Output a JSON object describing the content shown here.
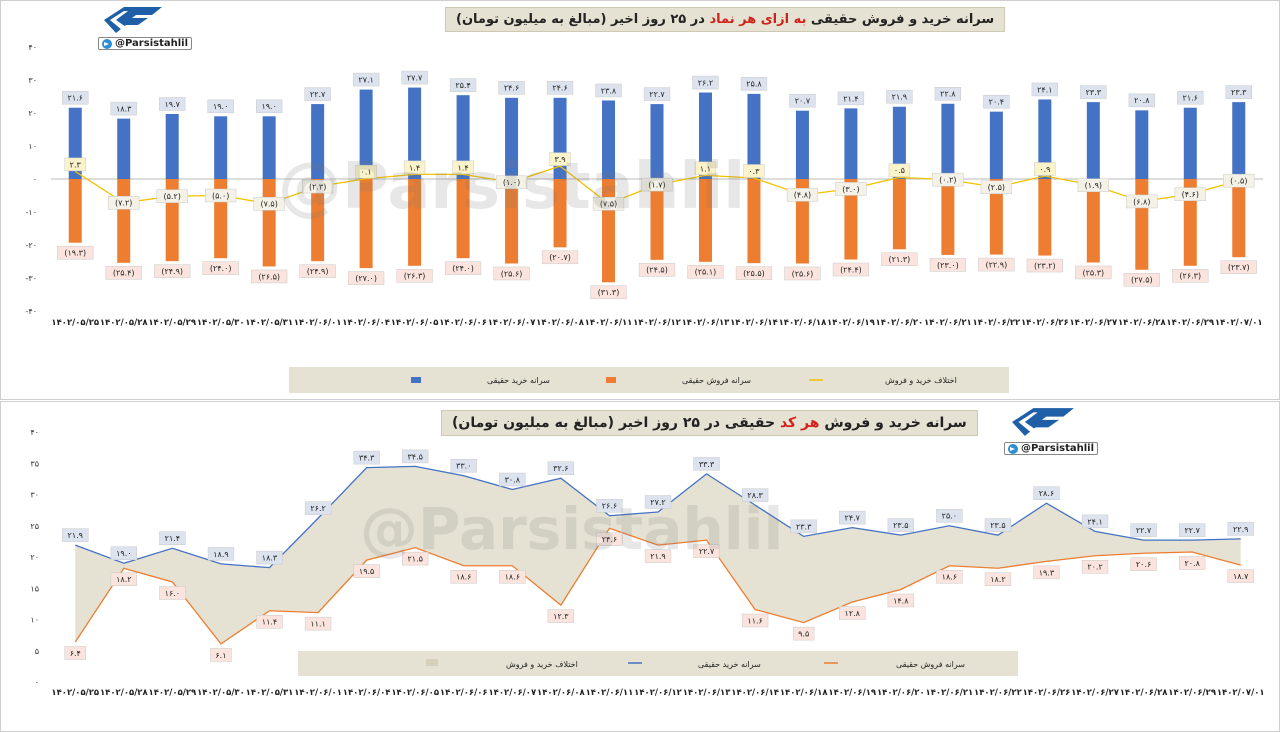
{
  "brand": {
    "handle": "@Parsistahlil",
    "watermark": "@Parsistahlil"
  },
  "dates": [
    "۱۴۰۲/۰۵/۲۵",
    "۱۴۰۲/۰۵/۲۸",
    "۱۴۰۲/۰۵/۲۹",
    "۱۴۰۲/۰۵/۳۰",
    "۱۴۰۲/۰۵/۳۱",
    "۱۴۰۲/۰۶/۰۱",
    "۱۴۰۲/۰۶/۰۴",
    "۱۴۰۲/۰۶/۰۵",
    "۱۴۰۲/۰۶/۰۶",
    "۱۴۰۲/۰۶/۰۷",
    "۱۴۰۲/۰۶/۰۸",
    "۱۴۰۲/۰۶/۱۱",
    "۱۴۰۲/۰۶/۱۲",
    "۱۴۰۲/۰۶/۱۳",
    "۱۴۰۲/۰۶/۱۴",
    "۱۴۰۲/۰۶/۱۸",
    "۱۴۰۲/۰۶/۱۹",
    "۱۴۰۲/۰۶/۲۰",
    "۱۴۰۲/۰۶/۲۱",
    "۱۴۰۲/۰۶/۲۲",
    "۱۴۰۲/۰۶/۲۶",
    "۱۴۰۲/۰۶/۲۷",
    "۱۴۰۲/۰۶/۲۸",
    "۱۴۰۲/۰۶/۲۹",
    "۱۴۰۲/۰۷/۰۱"
  ],
  "colors": {
    "buy": "#4472c4",
    "sell": "#ed7d31",
    "diff": "#f2c100",
    "area": "#e6e2d3",
    "label_bg": "#dde3ee",
    "label_bg_sell": "#fbe4dd"
  },
  "chart_data": [
    {
      "type": "bar",
      "title_parts": [
        "سرانه خرید و فروش حقیقی ",
        "به ازای هر نماد",
        " در ۲۵ روز اخیر (مبالغ به میلیون تومان)"
      ],
      "ylim": [
        -40,
        40
      ],
      "yticks": [
        40,
        30,
        20,
        10,
        0,
        -10,
        -20,
        -30,
        -40
      ],
      "ytick_labels": [
        "۴۰",
        "۳۰",
        "۲۰",
        "۱۰",
        "۰",
        "-۱۰",
        "-۲۰",
        "-۳۰",
        "-۴۰"
      ],
      "series": [
        {
          "name": "سرانه خرید حقیقی",
          "kind": "bar",
          "values": [
            21.6,
            18.3,
            19.7,
            19.0,
            19.0,
            22.7,
            27.1,
            27.7,
            25.4,
            24.6,
            24.6,
            23.8,
            22.7,
            26.2,
            25.8,
            20.7,
            21.4,
            21.9,
            22.8,
            20.4,
            24.1,
            23.3,
            20.8,
            21.6,
            23.3
          ],
          "labels": [
            "۲۱.۶",
            "۱۸.۳",
            "۱۹.۷",
            "۱۹.۰",
            "۱۹.۰",
            "۲۲.۷",
            "۲۷.۱",
            "۲۷.۷",
            "۲۵.۴",
            "۲۴.۶",
            "۲۴.۶",
            "۲۳.۸",
            "۲۲.۷",
            "۲۶.۲",
            "۲۵.۸",
            "۲۰.۷",
            "۲۱.۴",
            "۲۱.۹",
            "۲۲.۸",
            "۲۰.۴",
            "۲۴.۱",
            "۲۳.۳",
            "۲۰.۸",
            "۲۱.۶",
            "۲۳.۳"
          ]
        },
        {
          "name": "سرانه فروش حقیقی",
          "kind": "bar",
          "values": [
            -19.3,
            -25.4,
            -24.9,
            -24.0,
            -26.5,
            -24.9,
            -27.0,
            -26.3,
            -24.0,
            -25.6,
            -20.7,
            -31.3,
            -24.5,
            -25.1,
            -25.5,
            -25.6,
            -24.4,
            -21.3,
            -23.0,
            -22.9,
            -23.2,
            -25.3,
            -27.5,
            -26.3,
            -23.7
          ],
          "labels": [
            "(۱۹.۳)",
            "(۲۵.۴)",
            "(۲۴.۹)",
            "(۲۴.۰)",
            "(۲۶.۵)",
            "(۲۴.۹)",
            "(۲۷.۰)",
            "(۲۶.۳)",
            "(۲۴.۰)",
            "(۲۵.۶)",
            "(۲۰.۷)",
            "(۳۱.۳)",
            "(۲۴.۵)",
            "(۲۵.۱)",
            "(۲۵.۵)",
            "(۲۵.۶)",
            "(۲۴.۴)",
            "(۲۱.۳)",
            "(۲۳.۰)",
            "(۲۲.۹)",
            "(۲۳.۲)",
            "(۲۵.۳)",
            "(۲۷.۵)",
            "(۲۶.۳)",
            "(۲۳.۷)"
          ]
        },
        {
          "name": "اختلاف خرید و فروش",
          "kind": "line",
          "values": [
            2.3,
            -7.2,
            -5.2,
            -5.0,
            -7.5,
            -2.3,
            0.1,
            1.4,
            1.4,
            -1.0,
            3.9,
            -7.5,
            -1.7,
            1.1,
            0.3,
            -4.8,
            -3.0,
            0.5,
            -0.2,
            -2.5,
            0.9,
            -1.9,
            -6.8,
            -4.6,
            -0.5
          ],
          "labels": [
            "۲.۳",
            "(۷.۲)",
            "(۵.۲)",
            "(۵.۰)",
            "(۷.۵)",
            "(۲.۳)",
            "۰.۱",
            "۱.۴",
            "۱.۴",
            "(۱.۰)",
            "۳.۹",
            "(۷.۵)",
            "(۱.۷)",
            "۱.۱",
            "۰.۳",
            "(۴.۸)",
            "(۳.۰)",
            "۰.۵",
            "(۰.۲)",
            "(۲.۵)",
            "۰.۹",
            "(۱.۹)",
            "(۶.۸)",
            "(۴.۶)",
            "(۰.۵)"
          ]
        }
      ],
      "legend": "bottom"
    },
    {
      "type": "area",
      "title_parts": [
        "سرانه خرید و فروش ",
        "هر کد",
        " حقیقی در ۲۵ روز اخیر (مبالغ به میلیون تومان)"
      ],
      "ylim": [
        0,
        40
      ],
      "yticks": [
        40,
        35,
        30,
        25,
        20,
        15,
        10,
        5,
        0
      ],
      "ytick_labels": [
        "۴۰",
        "۳۵",
        "۳۰",
        "۲۵",
        "۲۰",
        "۱۵",
        "۱۰",
        "۵",
        "۰"
      ],
      "series": [
        {
          "name": "سرانه خرید حقیقی",
          "kind": "line",
          "values": [
            21.9,
            19.0,
            21.4,
            18.9,
            18.3,
            26.2,
            34.3,
            34.5,
            33.0,
            30.8,
            32.6,
            26.6,
            27.2,
            33.3,
            28.3,
            23.3,
            24.7,
            23.5,
            25.0,
            23.5,
            28.6,
            24.1,
            22.7,
            22.7,
            22.9
          ],
          "labels": [
            "۲۱.۹",
            "۱۹.۰",
            "۲۱.۴",
            "۱۸.۹",
            "۱۸.۳",
            "۲۶.۲",
            "۳۴.۳",
            "۳۴.۵",
            "۳۳.۰",
            "۳۰.۸",
            "۳۲.۶",
            "۲۶.۶",
            "۲۷.۲",
            "۳۳.۳",
            "۲۸.۳",
            "۲۳.۳",
            "۲۴.۷",
            "۲۳.۵",
            "۲۵.۰",
            "۲۳.۵",
            "۲۸.۶",
            "۲۴.۱",
            "۲۲.۷",
            "۲۲.۷",
            "۲۲.۹"
          ]
        },
        {
          "name": "سرانه فروش حقیقی",
          "kind": "line",
          "values": [
            6.4,
            18.2,
            16.0,
            6.1,
            11.4,
            11.1,
            19.5,
            21.5,
            18.6,
            18.6,
            12.3,
            24.6,
            21.9,
            22.7,
            11.6,
            9.5,
            12.8,
            14.8,
            18.6,
            18.2,
            19.3,
            20.2,
            20.6,
            20.8,
            18.7
          ],
          "labels": [
            "۶.۴",
            "۱۸.۲",
            "۱۶.۰",
            "۶.۱",
            "۱۱.۴",
            "۱۱.۱",
            "۱۹.۵",
            "۲۱.۵",
            "۱۸.۶",
            "۱۸.۶",
            "۱۲.۳",
            "۲۴.۶",
            "۲۱.۹",
            "۲۲.۷",
            "۱۱.۶",
            "۹.۵",
            "۱۲.۸",
            "۱۴.۸",
            "۱۸.۶",
            "۱۸.۲",
            "۱۹.۳",
            "۲۰.۲",
            "۲۰.۶",
            "۲۰.۸",
            "۱۸.۷"
          ]
        },
        {
          "name": "اختلاف خرید و فروش",
          "kind": "area"
        }
      ],
      "legend": "bottom"
    }
  ]
}
